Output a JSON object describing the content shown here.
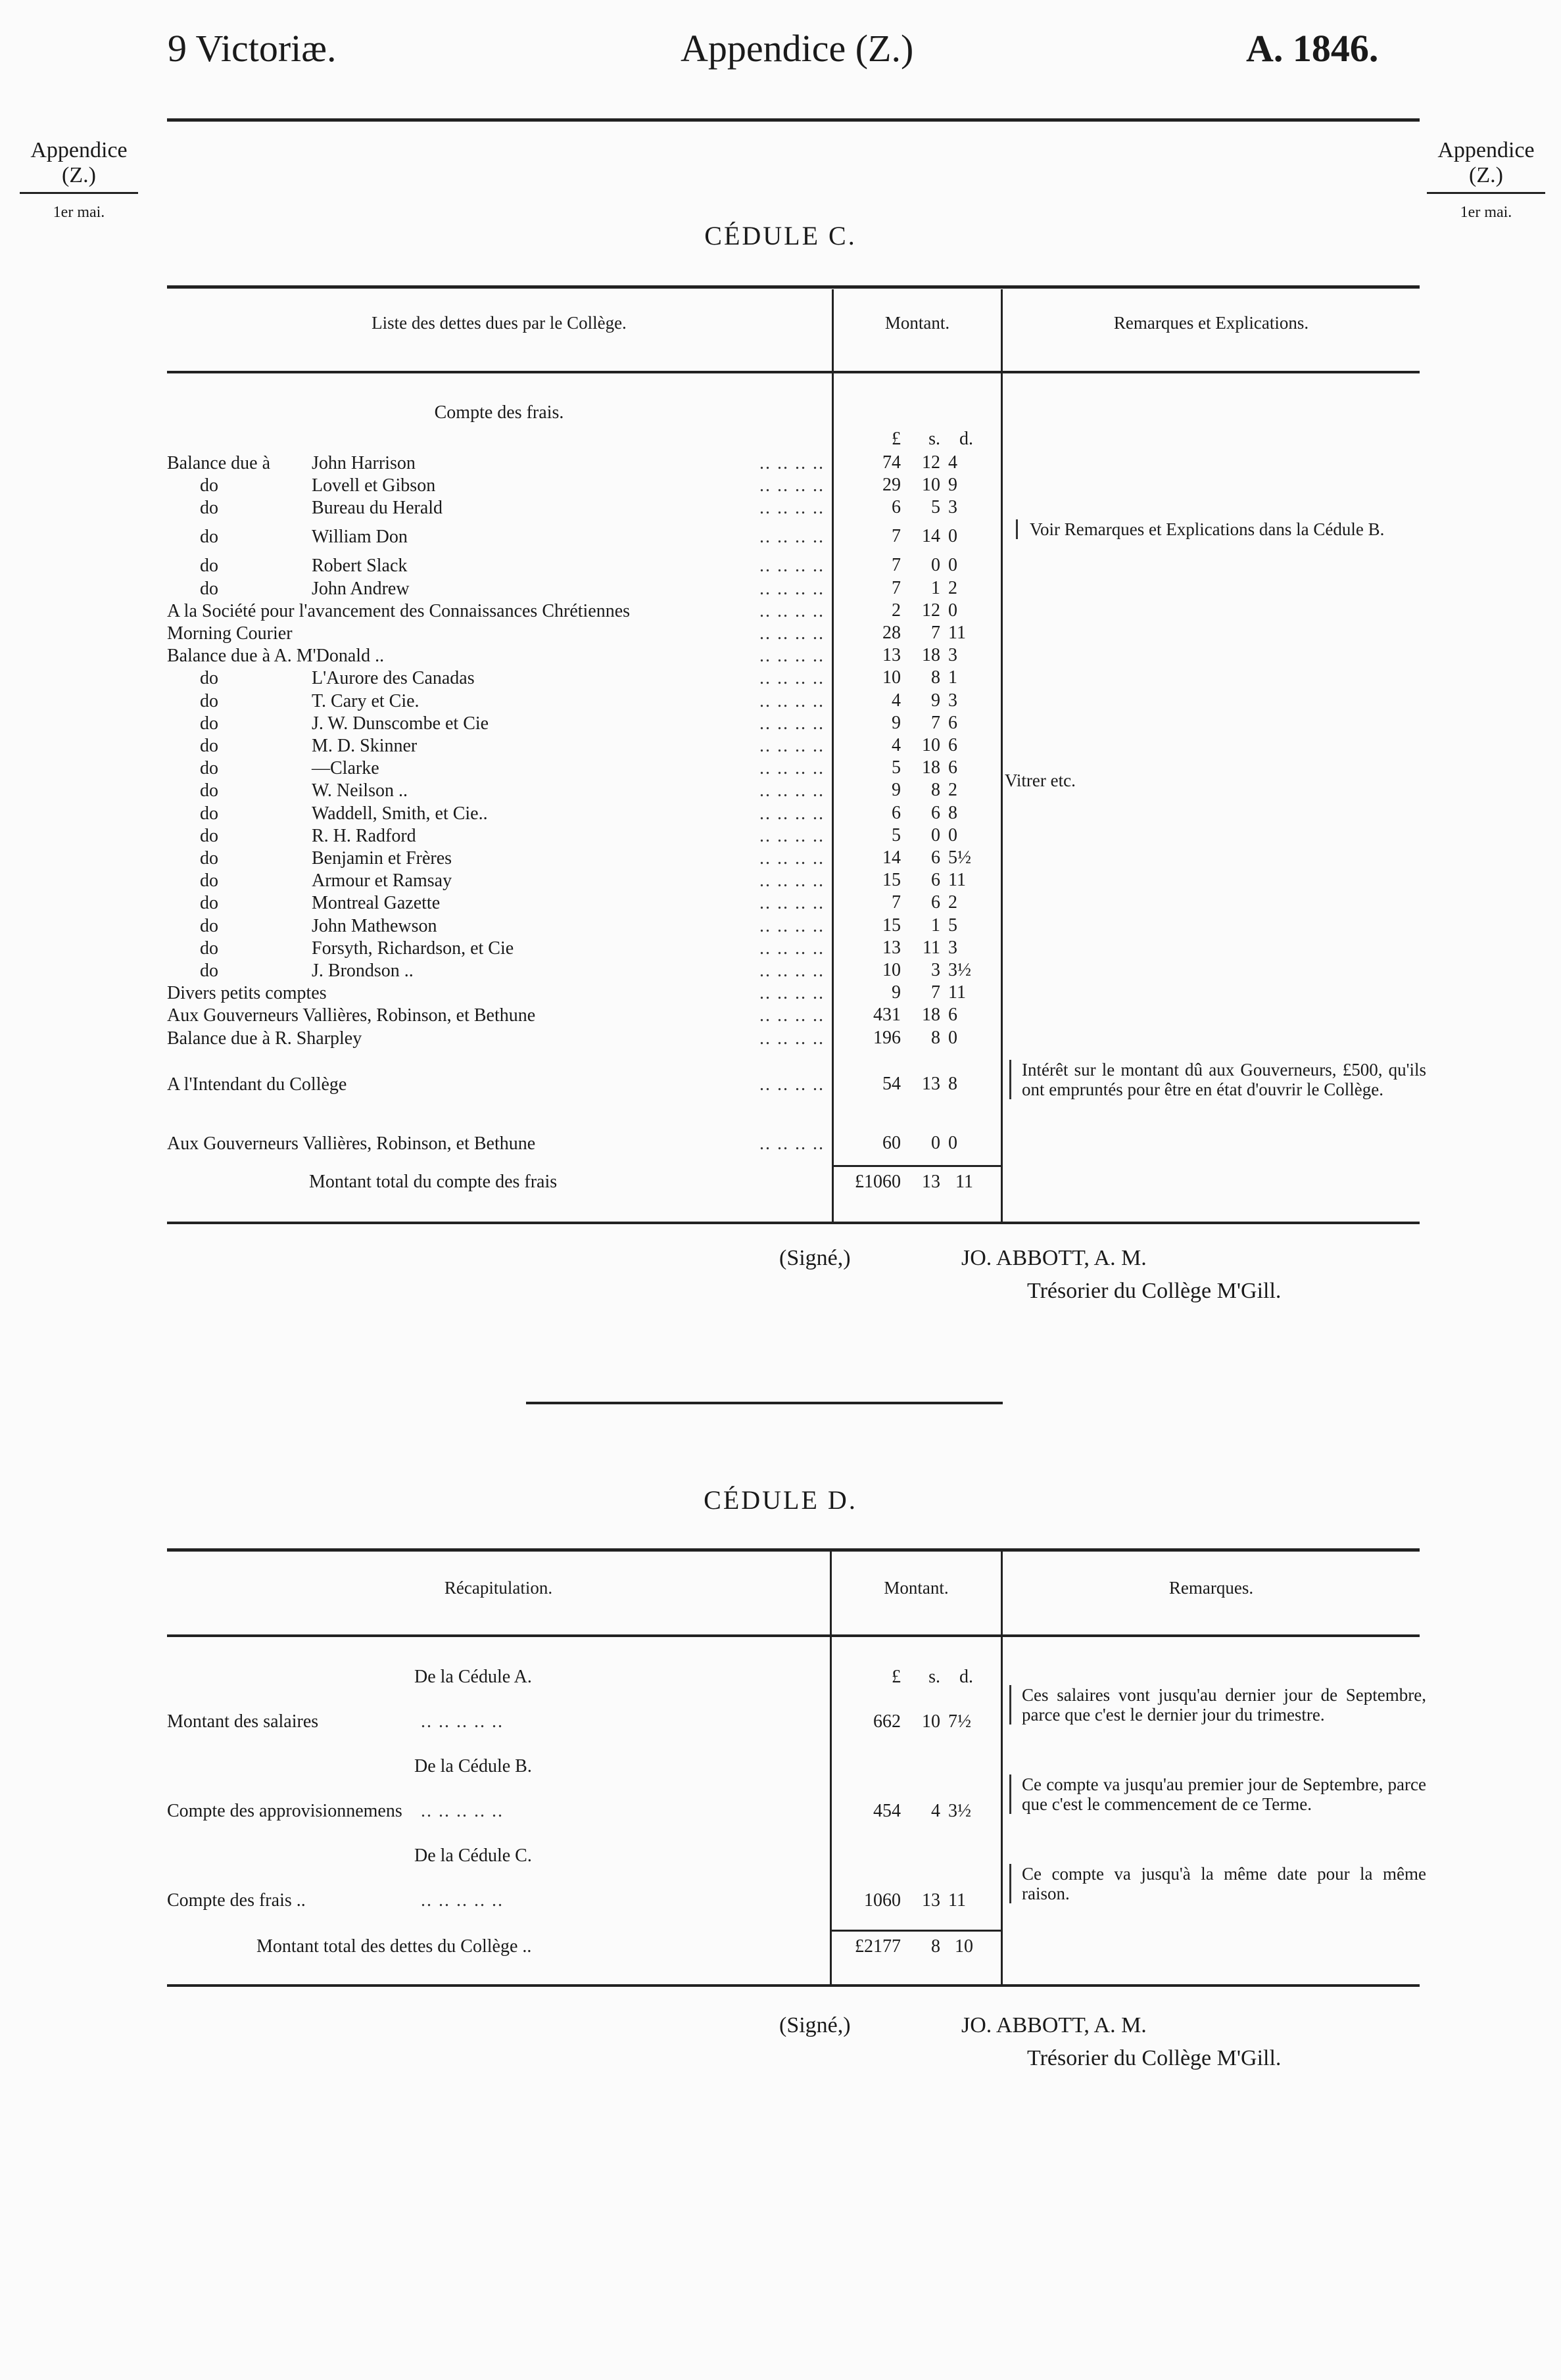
{
  "header": {
    "left": "9 Victoriæ.",
    "center": "Appendice (Z.)",
    "right": "A. 1846."
  },
  "side": {
    "label": "Appendice",
    "sub": "(Z.)",
    "date": "1er mai."
  },
  "cedule_c": {
    "title": "CÉDULE C.",
    "columns": [
      "Liste des dettes dues par le Collège.",
      "Montant.",
      "Remarques et Explications."
    ],
    "section": "Compte des frais.",
    "units": [
      "£",
      "s.",
      "d."
    ],
    "rows": [
      {
        "pre": "Balance due à",
        "name": "John Harrison",
        "l": "74",
        "s": "12",
        "d": "4"
      },
      {
        "pre": "do",
        "name": "Lovell et Gibson",
        "l": "29",
        "s": "10",
        "d": "9"
      },
      {
        "pre": "do",
        "name": "Bureau du Herald",
        "l": "6",
        "s": "5",
        "d": "3"
      },
      {
        "pre": "do",
        "name": "William Don",
        "l": "7",
        "s": "14",
        "d": "0"
      },
      {
        "pre": "do",
        "name": "Robert Slack",
        "l": "7",
        "s": "0",
        "d": "0"
      },
      {
        "pre": "do",
        "name": "John Andrew",
        "l": "7",
        "s": "1",
        "d": "2"
      },
      {
        "pre": "",
        "name": "A la Société pour l'avancement des Connaissances Chrétiennes",
        "l": "2",
        "s": "12",
        "d": "0"
      },
      {
        "pre": "",
        "name": "Morning Courier",
        "l": "28",
        "s": "7",
        "d": "11"
      },
      {
        "pre": "",
        "name": "Balance due à A. M'Donald ..",
        "l": "13",
        "s": "18",
        "d": "3"
      },
      {
        "pre": "do",
        "name": "L'Aurore des Canadas",
        "l": "10",
        "s": "8",
        "d": "1"
      },
      {
        "pre": "do",
        "name": "T. Cary et Cie.",
        "l": "4",
        "s": "9",
        "d": "3"
      },
      {
        "pre": "do",
        "name": "J. W. Dunscombe et Cie",
        "l": "9",
        "s": "7",
        "d": "6"
      },
      {
        "pre": "do",
        "name": "M. D. Skinner",
        "l": "4",
        "s": "10",
        "d": "6"
      },
      {
        "pre": "do",
        "name": "—Clarke",
        "l": "5",
        "s": "18",
        "d": "6"
      },
      {
        "pre": "do",
        "name": "W. Neilson ..",
        "l": "9",
        "s": "8",
        "d": "2"
      },
      {
        "pre": "do",
        "name": "Waddell, Smith, et Cie..",
        "l": "6",
        "s": "6",
        "d": "8"
      },
      {
        "pre": "do",
        "name": "R. H. Radford",
        "l": "5",
        "s": "0",
        "d": "0"
      },
      {
        "pre": "do",
        "name": "Benjamin et Frères",
        "l": "14",
        "s": "6",
        "d": "5½"
      },
      {
        "pre": "do",
        "name": "Armour et Ramsay",
        "l": "15",
        "s": "6",
        "d": "11"
      },
      {
        "pre": "do",
        "name": "Montreal Gazette",
        "l": "7",
        "s": "6",
        "d": "2"
      },
      {
        "pre": "do",
        "name": "John Mathewson",
        "l": "15",
        "s": "1",
        "d": "5"
      },
      {
        "pre": "do",
        "name": "Forsyth, Richardson, et Cie",
        "l": "13",
        "s": "11",
        "d": "3"
      },
      {
        "pre": "do",
        "name": "J. Brondson ..",
        "l": "10",
        "s": "3",
        "d": "3½"
      },
      {
        "pre": "",
        "name": "Divers petits comptes",
        "l": "9",
        "s": "7",
        "d": "11"
      },
      {
        "pre": "",
        "name": "Aux Gouverneurs Vallières, Robinson, et Bethune",
        "l": "431",
        "s": "18",
        "d": "6"
      },
      {
        "pre": "",
        "name": "Balance due à R. Sharpley",
        "l": "196",
        "s": "8",
        "d": "0"
      },
      {
        "pre": "",
        "name": "A l'Intendant du Collège",
        "l": "54",
        "s": "13",
        "d": "8",
        "gap": true
      },
      {
        "pre": "",
        "name": "Aux Gouverneurs Vallières, Robinson, et Bethune",
        "l": "60",
        "s": "0",
        "d": "0",
        "gap": true
      }
    ],
    "total": {
      "label": "Montant total du compte des frais",
      "l": "£1060",
      "s": "13",
      "d": "11"
    },
    "remarks": [
      "Voir Remarques et Explications dans la Cédule B.",
      "Vitrer etc.",
      "Intérêt sur le montant dû aux Gouverneurs, £500, qu'ils ont empruntés pour être en état d'ouvrir le Collège."
    ]
  },
  "signature": {
    "signed": "(Signé,)",
    "name": "JO. ABBOTT, A. M.",
    "role": "Trésorier du Collège M'Gill."
  },
  "cedule_d": {
    "title": "CÉDULE D.",
    "columns": [
      "Récapitulation.",
      "Montant.",
      "Remarques."
    ],
    "units": [
      "£",
      "s.",
      "d."
    ],
    "sections": [
      {
        "head": "De la Cédule A.",
        "label": "Montant des salaires",
        "l": "662",
        "s": "10",
        "d": "7½",
        "remark": "Ces salaires vont jusqu'au dernier jour de Septembre, parce que c'est le dernier jour du trimestre."
      },
      {
        "head": "De la Cédule B.",
        "label": "Compte des approvisionnemens",
        "l": "454",
        "s": "4",
        "d": "3½",
        "remark": "Ce compte va jusqu'au premier jour de Septembre, parce que c'est le commencement de ce Terme."
      },
      {
        "head": "De la Cédule C.",
        "label": "Compte des frais ..",
        "l": "1060",
        "s": "13",
        "d": "11",
        "remark": "Ce compte va jusqu'à la même date pour la même raison."
      }
    ],
    "total": {
      "label": "Montant total des dettes du Collège ..",
      "l": "£2177",
      "s": "8",
      "d": "10"
    }
  }
}
